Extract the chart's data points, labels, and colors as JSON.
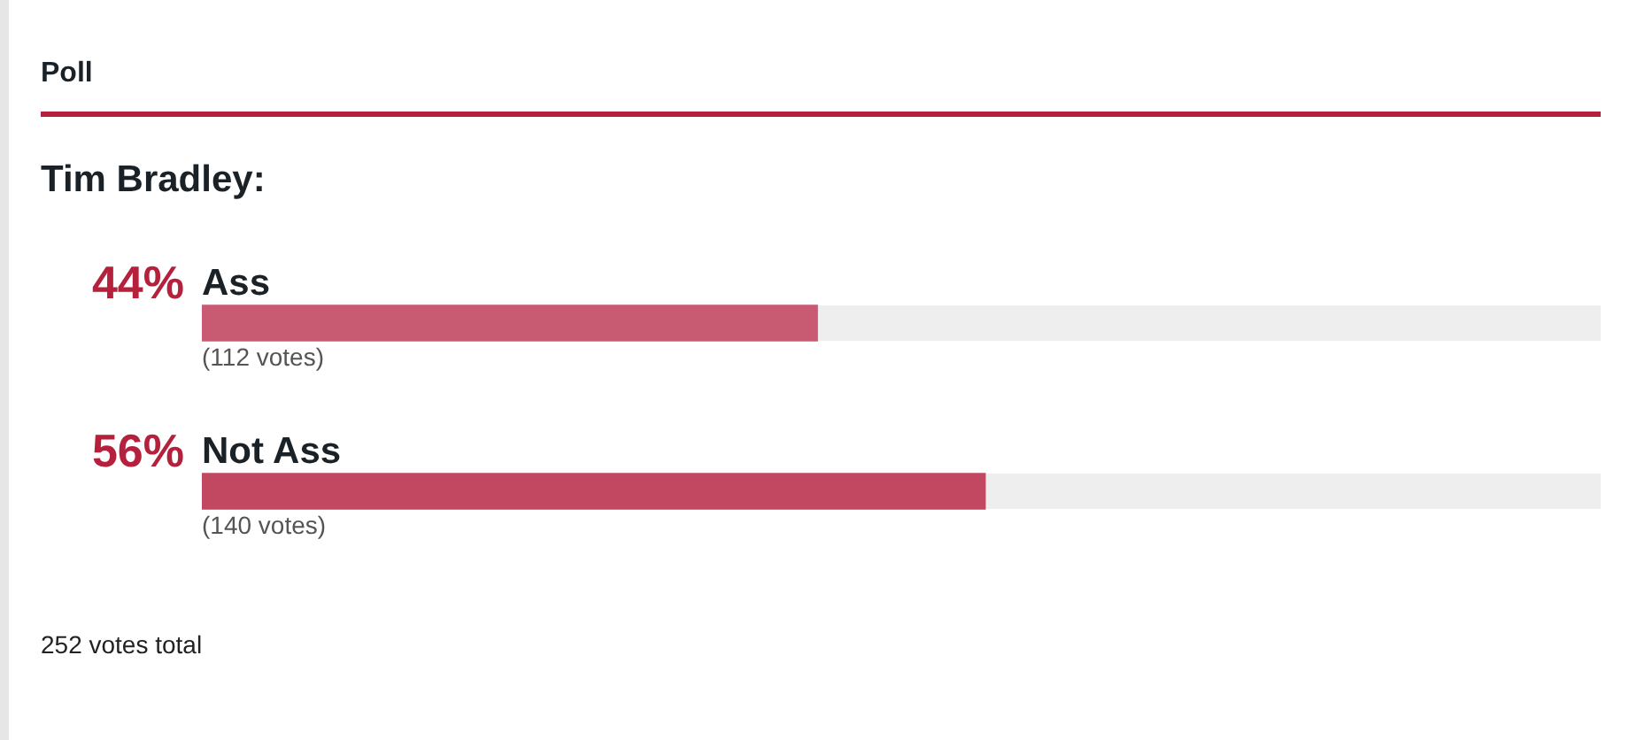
{
  "chart_data": {
    "type": "bar",
    "orientation": "horizontal",
    "title": "Poll",
    "subtitle": "Tim Bradley:",
    "categories": [
      "Ass",
      "Not Ass"
    ],
    "values": [
      44,
      56
    ],
    "value_labels": [
      "44%",
      "56%"
    ],
    "colors": [
      "#c85a72",
      "#c24862"
    ],
    "xlim": [
      0,
      100
    ],
    "annotations": [
      "(112 votes)",
      "(140 votes)",
      "252 votes total"
    ],
    "legend": false
  }
}
